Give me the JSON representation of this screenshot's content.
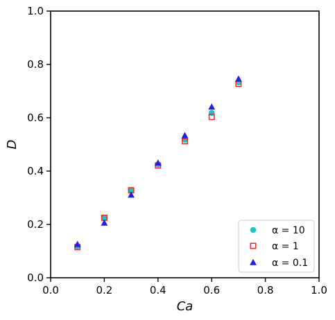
{
  "chart_data": {
    "type": "scatter",
    "xlabel": "Ca",
    "ylabel": "D",
    "xlim": [
      0.0,
      1.0
    ],
    "ylim": [
      0.0,
      1.0
    ],
    "xticks": [
      "0.0",
      "0.2",
      "0.4",
      "0.6",
      "0.8",
      "1.0"
    ],
    "yticks": [
      "0.0",
      "0.2",
      "0.4",
      "0.6",
      "0.8",
      "1.0"
    ],
    "grid": false,
    "legend_position": "bottom-right",
    "series": [
      {
        "name": "α = 10",
        "marker": "circle",
        "color": "#1fc4c4",
        "x": [
          0.1,
          0.2,
          0.3,
          0.4,
          0.5,
          0.6,
          0.7
        ],
        "y": [
          0.118,
          0.225,
          0.328,
          0.425,
          0.518,
          0.618,
          0.733
        ]
      },
      {
        "name": "α = 1",
        "marker": "square-open",
        "color": "#e8302a",
        "x": [
          0.1,
          0.2,
          0.3,
          0.4,
          0.5,
          0.6,
          0.7
        ],
        "y": [
          0.115,
          0.225,
          0.328,
          0.421,
          0.512,
          0.603,
          0.727
        ]
      },
      {
        "name": "α = 0.1",
        "marker": "triangle",
        "color": "#1f1fe8",
        "x": [
          0.1,
          0.2,
          0.3,
          0.4,
          0.5,
          0.6,
          0.7
        ],
        "y": [
          0.125,
          0.205,
          0.31,
          0.43,
          0.533,
          0.64,
          0.745
        ]
      }
    ]
  }
}
